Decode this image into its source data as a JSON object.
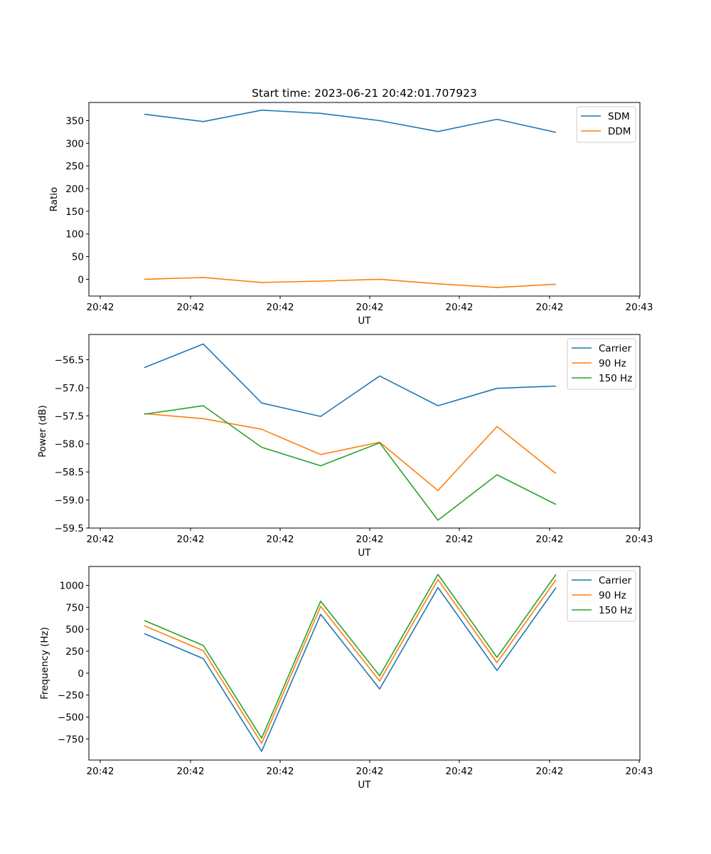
{
  "title": "Start time: 2023-06-21 20:42:01.707923",
  "chart_data": [
    {
      "type": "line",
      "title": "Start time: 2023-06-21 20:42:01.707923",
      "xlabel": "UT",
      "ylabel": "Ratio",
      "x_tick_labels": [
        "20:42",
        "20:42",
        "20:42",
        "20:42",
        "20:42",
        "20:42",
        "20:42",
        "20:43"
      ],
      "y_ticks": [
        0,
        50,
        100,
        150,
        200,
        250,
        300,
        350
      ],
      "y_tick_labels": [
        "0",
        "50",
        "100",
        "150",
        "200",
        "250",
        "300",
        "350"
      ],
      "ylim": [
        -37,
        390
      ],
      "legend": "top-right",
      "grid": false,
      "series": [
        {
          "name": "SDM",
          "color": "#1f77b4",
          "values": [
            364,
            348,
            373,
            366,
            350,
            326,
            353,
            324
          ]
        },
        {
          "name": "DDM",
          "color": "#ff7f0e",
          "values": [
            0,
            4,
            -7,
            -4,
            0,
            -10,
            -18,
            -11
          ]
        }
      ]
    },
    {
      "type": "line",
      "xlabel": "UT",
      "ylabel": "Power (dB)",
      "x_tick_labels": [
        "20:42",
        "20:42",
        "20:42",
        "20:42",
        "20:42",
        "20:42",
        "20:42",
        "20:43"
      ],
      "y_ticks": [
        -59.5,
        -59.0,
        -58.5,
        -58.0,
        -57.5,
        -57.0,
        -56.5
      ],
      "y_tick_labels": [
        "−59.5",
        "−59.0",
        "−58.5",
        "−58.0",
        "−57.5",
        "−57.0",
        "−56.5"
      ],
      "ylim": [
        -59.5,
        -56.05
      ],
      "legend": "top-right",
      "grid": false,
      "series": [
        {
          "name": "Carrier",
          "color": "#1f77b4",
          "values": [
            -56.64,
            -56.22,
            -57.27,
            -57.51,
            -56.79,
            -57.32,
            -57.01,
            -56.97
          ]
        },
        {
          "name": "90 Hz",
          "color": "#ff7f0e",
          "values": [
            -57.46,
            -57.55,
            -57.74,
            -58.19,
            -57.97,
            -58.83,
            -57.69,
            -58.53
          ]
        },
        {
          "name": "150 Hz",
          "color": "#2ca02c",
          "values": [
            -57.47,
            -57.32,
            -58.06,
            -58.39,
            -57.98,
            -59.36,
            -58.55,
            -59.08
          ]
        }
      ]
    },
    {
      "type": "line",
      "xlabel": "UT",
      "ylabel": "Frequency (Hz)",
      "x_tick_labels": [
        "20:42",
        "20:42",
        "20:42",
        "20:42",
        "20:42",
        "20:42",
        "20:42",
        "20:43"
      ],
      "y_ticks": [
        -750,
        -500,
        -250,
        0,
        250,
        500,
        750,
        1000
      ],
      "y_tick_labels": [
        "−750",
        "−500",
        "−250",
        "0",
        "250",
        "500",
        "750",
        "1000"
      ],
      "ylim": [
        -990,
        1215
      ],
      "legend": "top-right",
      "grid": false,
      "series": [
        {
          "name": "Carrier",
          "color": "#1f77b4",
          "values": [
            450,
            165,
            -890,
            670,
            -180,
            975,
            30,
            975
          ]
        },
        {
          "name": "90 Hz",
          "color": "#ff7f0e",
          "values": [
            540,
            255,
            -800,
            760,
            -90,
            1065,
            120,
            1065
          ]
        },
        {
          "name": "150 Hz",
          "color": "#2ca02c",
          "values": [
            600,
            315,
            -740,
            820,
            -30,
            1125,
            180,
            1125
          ]
        }
      ]
    }
  ]
}
